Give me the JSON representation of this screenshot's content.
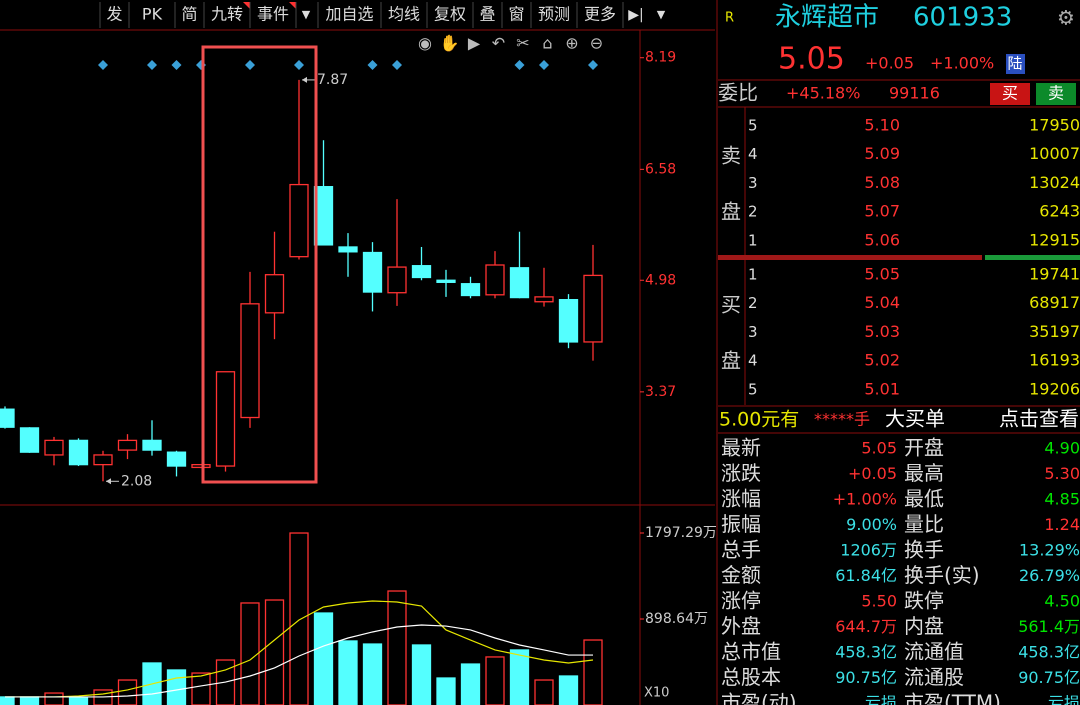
{
  "toolbar": [
    "发",
    "PK",
    "简",
    "九转",
    "事件",
    "加自选",
    "均线",
    "复权",
    "叠",
    "窗",
    "预测",
    "更多"
  ],
  "chart": {
    "type": "candlestick",
    "ylim": [
      1.81,
      8.59
    ],
    "yticks": [
      3.37,
      4.98,
      6.58,
      8.19
    ],
    "candles": [
      {
        "open": 3.12,
        "high": 3.16,
        "low": 2.84,
        "close": 2.86
      },
      {
        "open": 2.85,
        "high": 2.86,
        "low": 2.49,
        "close": 2.5
      },
      {
        "open": 2.46,
        "high": 2.72,
        "low": 2.31,
        "close": 2.67
      },
      {
        "open": 2.67,
        "high": 2.7,
        "low": 2.3,
        "close": 2.32
      },
      {
        "open": 2.32,
        "high": 2.52,
        "low": 2.08,
        "close": 2.46
      },
      {
        "open": 2.53,
        "high": 2.76,
        "low": 2.4,
        "close": 2.67
      },
      {
        "open": 2.67,
        "high": 2.96,
        "low": 2.45,
        "close": 2.53
      },
      {
        "open": 2.5,
        "high": 2.52,
        "low": 2.15,
        "close": 2.3
      },
      {
        "open": 2.28,
        "high": 2.33,
        "low": 2.27,
        "close": 2.32
      },
      {
        "open": 2.3,
        "high": 3.66,
        "low": 2.22,
        "close": 3.66
      },
      {
        "open": 3.0,
        "high": 5.1,
        "low": 2.85,
        "close": 4.64
      },
      {
        "open": 4.51,
        "high": 5.68,
        "low": 4.13,
        "close": 5.06
      },
      {
        "open": 5.32,
        "high": 7.87,
        "low": 5.28,
        "close": 6.36
      },
      {
        "open": 6.33,
        "high": 7.0,
        "low": 5.49,
        "close": 5.49
      },
      {
        "open": 5.46,
        "high": 5.66,
        "low": 5.03,
        "close": 5.39
      },
      {
        "open": 5.38,
        "high": 5.53,
        "low": 4.53,
        "close": 4.81
      },
      {
        "open": 4.8,
        "high": 6.15,
        "low": 4.61,
        "close": 5.17
      },
      {
        "open": 5.19,
        "high": 5.46,
        "low": 4.98,
        "close": 5.02
      },
      {
        "open": 4.98,
        "high": 5.13,
        "low": 4.74,
        "close": 4.95
      },
      {
        "open": 4.93,
        "high": 5.03,
        "low": 4.72,
        "close": 4.76
      },
      {
        "open": 4.77,
        "high": 5.4,
        "low": 4.72,
        "close": 5.2
      },
      {
        "open": 5.16,
        "high": 5.68,
        "low": 4.72,
        "close": 4.73
      },
      {
        "open": 4.67,
        "high": 5.16,
        "low": 4.6,
        "close": 4.74
      },
      {
        "open": 4.7,
        "high": 4.78,
        "low": 4.0,
        "close": 4.09
      },
      {
        "open": 4.09,
        "high": 5.49,
        "low": 3.82,
        "close": 5.05
      }
    ],
    "events": [
      4,
      6,
      7,
      8,
      10,
      12,
      15,
      16,
      21,
      22,
      24
    ]
  },
  "volume": {
    "type": "bar",
    "ylim": [
      0,
      1933
    ],
    "yticks": [
      {
        "value": 898.64,
        "label": "898.64万"
      },
      {
        "value": 1797.29,
        "label": "1797.29万"
      }
    ],
    "values": [
      84,
      84,
      125,
      73,
      157,
      261,
      439,
      366,
      334,
      470,
      1066,
      1097,
      1797,
      961,
      669,
      637,
      1191,
      627,
      282,
      428,
      502,
      575,
      261,
      303,
      679
    ],
    "ma": [
      {
        "color": "#e6e600",
        "values": [
          84,
          84,
          84,
          94,
          115,
          157,
          220,
          282,
          303,
          366,
          470,
          679,
          888,
          1024,
          1066,
          1087,
          1076,
          1034,
          784,
          679,
          575,
          522,
          470,
          439,
          470
        ]
      },
      {
        "color": "#ffffff",
        "values": [
          84,
          84,
          84,
          84,
          84,
          94,
          115,
          157,
          199,
          240,
          303,
          387,
          512,
          616,
          700,
          763,
          815,
          836,
          825,
          784,
          700,
          627,
          575,
          522,
          522
        ]
      }
    ],
    "multiplier": "X10"
  },
  "quote": {
    "market": "R",
    "name": "永辉超市",
    "code": "601933",
    "price": "5.05",
    "change": "+0.05",
    "change_pct": "+1.00%",
    "tag": "陆",
    "ratio_label": "委比",
    "ratio": "+45.18%",
    "ratio_diff": "99116",
    "buy_btn": "买",
    "sell_btn": "卖",
    "sell_side": [
      "卖",
      "盘"
    ],
    "asks": [
      [
        "5",
        "5.10",
        "17950"
      ],
      [
        "4",
        "5.09",
        "10007"
      ],
      [
        "3",
        "5.08",
        "13024"
      ],
      [
        "2",
        "5.07",
        "6243"
      ],
      [
        "1",
        "5.06",
        "12915"
      ]
    ],
    "buy_side": [
      "买",
      "盘"
    ],
    "bids": [
      [
        "1",
        "5.05",
        "19741"
      ],
      [
        "2",
        "5.04",
        "68917"
      ],
      [
        "3",
        "5.03",
        "35197"
      ],
      [
        "4",
        "5.02",
        "16193"
      ],
      [
        "5",
        "5.01",
        "19206"
      ]
    ],
    "banner": [
      "5.00元有",
      "*****手",
      "大买单",
      "点击查看"
    ],
    "stats": [
      [
        "最新",
        "5.05",
        "开盘",
        "4.90"
      ],
      [
        "涨跌",
        "+0.05",
        "最高",
        "5.30"
      ],
      [
        "涨幅",
        "+1.00%",
        "最低",
        "4.85"
      ],
      [
        "振幅",
        "9.00%",
        "量比",
        "1.24"
      ],
      [
        "总手",
        "1206万",
        "换手",
        "13.29%"
      ],
      [
        "金额",
        "61.84亿",
        "换手(实)",
        "26.79%"
      ],
      [
        "涨停",
        "5.50",
        "跌停",
        "4.50"
      ],
      [
        "外盘",
        "644.7万",
        "内盘",
        "561.4万"
      ],
      [
        "总市值",
        "458.3亿",
        "流通值",
        "458.3亿"
      ],
      [
        "总股本",
        "90.75亿",
        "流通股",
        "90.75亿"
      ],
      [
        "市盈(动)",
        "亏损",
        "市盈(TTM)",
        "亏损"
      ]
    ]
  }
}
